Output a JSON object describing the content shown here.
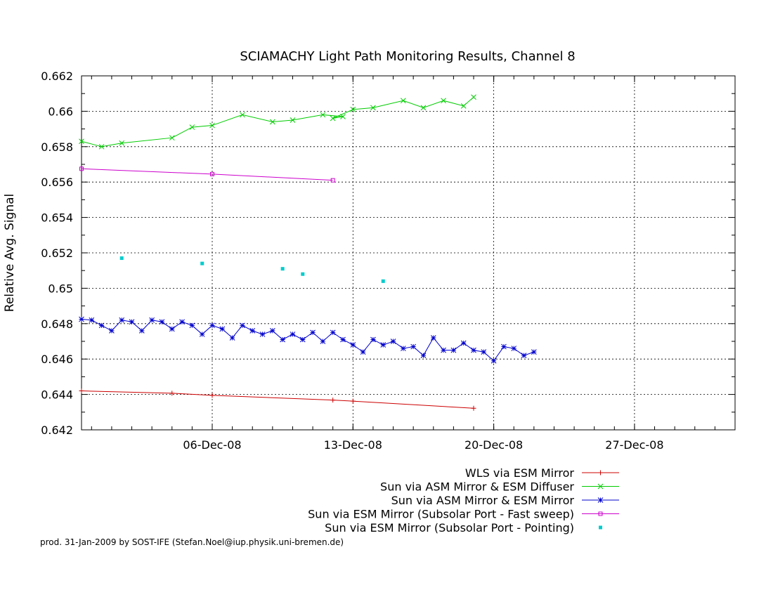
{
  "chart_data": {
    "type": "line",
    "title": "SCIAMACHY Light Path Monitoring Results, Channel 8",
    "ylabel": "Relative Avg. Signal",
    "xlabel": "",
    "x_axis": {
      "type": "date",
      "range": [
        "2008-11-29T12:00",
        "2009-01-01T00:00"
      ],
      "ticks": [
        "2008-12-06",
        "2008-12-13",
        "2008-12-20",
        "2008-12-27"
      ],
      "tick_labels": [
        "06-Dec-08",
        "13-Dec-08",
        "20-Dec-08",
        "27-Dec-08"
      ]
    },
    "y_axis": {
      "range": [
        0.642,
        0.662
      ],
      "ticks": [
        0.642,
        0.644,
        0.646,
        0.648,
        0.65,
        0.652,
        0.654,
        0.656,
        0.658,
        0.66,
        0.662
      ],
      "tick_labels": [
        "0.642",
        "0.644",
        "0.646",
        "0.648",
        "0.65",
        "0.652",
        "0.654",
        "0.656",
        "0.658",
        "0.66",
        "0.662"
      ]
    },
    "grid": true,
    "legend_position": "bottom-right",
    "series": [
      {
        "name": "WLS via ESM Mirror",
        "color": "#cc0000",
        "marker": "plus",
        "line": true,
        "points": [
          [
            "2008-11-29T12:00",
            0.6442
          ],
          [
            "2008-12-04T00:00",
            0.64407
          ],
          [
            "2008-12-06T00:00",
            0.64395
          ],
          [
            "2008-12-12T00:00",
            0.64368
          ],
          [
            "2008-12-13T00:00",
            0.64362
          ],
          [
            "2008-12-19T00:00",
            0.64322
          ]
        ]
      },
      {
        "name": "Sun via ASM Mirror & ESM Diffuser",
        "color": "#00cc00",
        "marker": "cross",
        "line": true,
        "points": [
          [
            "2008-11-29T12:00",
            0.6583
          ],
          [
            "2008-11-30T12:00",
            0.658
          ],
          [
            "2008-12-01T12:00",
            0.6582
          ],
          [
            "2008-12-04T00:00",
            0.6585
          ],
          [
            "2008-12-05T00:00",
            0.6591
          ],
          [
            "2008-12-06T00:00",
            0.6592
          ],
          [
            "2008-12-07T12:00",
            0.6598
          ],
          [
            "2008-12-09T00:00",
            0.6594
          ],
          [
            "2008-12-10T00:00",
            0.6595
          ],
          [
            "2008-12-11T12:00",
            0.6598
          ],
          [
            "2008-12-12T12:00",
            0.6597
          ],
          [
            "2008-12-12T00:00",
            0.6596
          ],
          [
            "2008-12-13T00:00",
            0.6601
          ],
          [
            "2008-12-14T00:00",
            0.6602
          ],
          [
            "2008-12-15T12:00",
            0.6606
          ],
          [
            "2008-12-16T12:00",
            0.6602
          ],
          [
            "2008-12-17T12:00",
            0.6606
          ],
          [
            "2008-12-18T12:00",
            0.6603
          ],
          [
            "2008-12-19T00:00",
            0.6608
          ]
        ]
      },
      {
        "name": "Sun via ASM Mirror & ESM Mirror",
        "color": "#0000cc",
        "marker": "star",
        "line": true,
        "points": [
          [
            "2008-11-29T12:00",
            0.64825
          ],
          [
            "2008-11-30T00:00",
            0.6482
          ],
          [
            "2008-11-30T12:00",
            0.6479
          ],
          [
            "2008-12-01T00:00",
            0.6476
          ],
          [
            "2008-12-01T12:00",
            0.6482
          ],
          [
            "2008-12-02T00:00",
            0.6481
          ],
          [
            "2008-12-02T12:00",
            0.6476
          ],
          [
            "2008-12-03T00:00",
            0.6482
          ],
          [
            "2008-12-03T12:00",
            0.6481
          ],
          [
            "2008-12-04T00:00",
            0.6477
          ],
          [
            "2008-12-04T12:00",
            0.6481
          ],
          [
            "2008-12-05T00:00",
            0.6479
          ],
          [
            "2008-12-05T12:00",
            0.6474
          ],
          [
            "2008-12-06T00:00",
            0.6479
          ],
          [
            "2008-12-06T12:00",
            0.6477
          ],
          [
            "2008-12-07T00:00",
            0.6472
          ],
          [
            "2008-12-07T12:00",
            0.6479
          ],
          [
            "2008-12-08T00:00",
            0.6476
          ],
          [
            "2008-12-08T12:00",
            0.6474
          ],
          [
            "2008-12-09T00:00",
            0.6476
          ],
          [
            "2008-12-09T12:00",
            0.6471
          ],
          [
            "2008-12-10T00:00",
            0.6474
          ],
          [
            "2008-12-10T12:00",
            0.6471
          ],
          [
            "2008-12-11T00:00",
            0.6475
          ],
          [
            "2008-12-11T12:00",
            0.647
          ],
          [
            "2008-12-12T00:00",
            0.6475
          ],
          [
            "2008-12-12T12:00",
            0.6471
          ],
          [
            "2008-12-13T00:00",
            0.6468
          ],
          [
            "2008-12-13T12:00",
            0.6464
          ],
          [
            "2008-12-14T00:00",
            0.6471
          ],
          [
            "2008-12-14T12:00",
            0.6468
          ],
          [
            "2008-12-15T00:00",
            0.647
          ],
          [
            "2008-12-15T12:00",
            0.6466
          ],
          [
            "2008-12-16T00:00",
            0.6467
          ],
          [
            "2008-12-16T12:00",
            0.6462
          ],
          [
            "2008-12-17T00:00",
            0.6472
          ],
          [
            "2008-12-17T12:00",
            0.6465
          ],
          [
            "2008-12-18T00:00",
            0.6465
          ],
          [
            "2008-12-18T12:00",
            0.6469
          ],
          [
            "2008-12-19T00:00",
            0.6465
          ],
          [
            "2008-12-19T12:00",
            0.6464
          ],
          [
            "2008-12-20T00:00",
            0.6459
          ],
          [
            "2008-12-20T12:00",
            0.6467
          ],
          [
            "2008-12-21T00:00",
            0.6466
          ],
          [
            "2008-12-21T12:00",
            0.6462
          ],
          [
            "2008-12-22T00:00",
            0.6464
          ]
        ]
      },
      {
        "name": "Sun via ESM Mirror (Subsolar Port - Fast sweep)",
        "color": "#cc00cc",
        "marker": "square",
        "line": true,
        "points": [
          [
            "2008-11-29T12:00",
            0.65675
          ],
          [
            "2008-12-06T00:00",
            0.65645
          ],
          [
            "2008-12-12T00:00",
            0.6561
          ]
        ]
      },
      {
        "name": "Sun via ESM Mirror (Subsolar Port - Pointing)",
        "color": "#00cccc",
        "marker": "dot",
        "line": false,
        "points": [
          [
            "2008-12-01T12:00",
            0.6517
          ],
          [
            "2008-12-05T12:00",
            0.6514
          ],
          [
            "2008-12-09T12:00",
            0.6511
          ],
          [
            "2008-12-10T12:00",
            0.6508
          ],
          [
            "2008-12-14T12:00",
            0.6504
          ]
        ]
      }
    ]
  },
  "footer": "prod. 31-Jan-2009 by SOST-IFE (Stefan.Noel@iup.physik.uni-bremen.de)"
}
